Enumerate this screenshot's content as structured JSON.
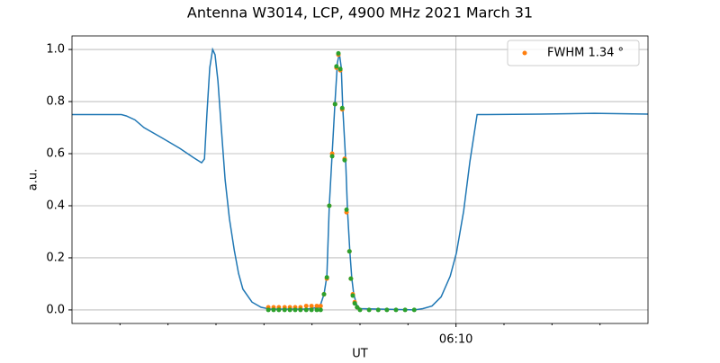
{
  "chart_data": {
    "type": "line",
    "title": "Antenna W3014, LCP, 4900 MHz 2021 March 31",
    "x_label": "UT",
    "y_label": "a.u.",
    "xlim": [
      2,
      14
    ],
    "xticks": [
      {
        "value": 10,
        "label": "06:10"
      }
    ],
    "xminorticks": [
      3,
      4,
      5,
      6,
      7,
      8,
      9,
      11,
      12,
      13
    ],
    "ylim": [
      -0.052,
      1.052
    ],
    "yticks": [
      {
        "value": 0,
        "label": "0.0"
      },
      0.2,
      0.4,
      0.6,
      0.8,
      {
        "value": 1,
        "label": "1.0"
      }
    ],
    "grid": true,
    "legend": "upper right",
    "series": [
      {
        "style": "line",
        "color": "#1f77b4",
        "x": [
          2.0,
          3.03,
          3.13,
          3.31,
          3.5,
          3.88,
          4.25,
          4.53,
          4.7,
          4.76,
          4.81,
          4.87,
          4.93,
          4.98,
          5.04,
          5.11,
          5.19,
          5.28,
          5.38,
          5.47,
          5.56,
          5.75,
          5.94,
          6.13,
          6.88,
          7.16,
          7.25,
          7.31,
          7.36,
          7.42,
          7.48,
          7.53,
          7.57,
          7.61,
          7.64,
          7.7,
          7.74,
          7.79,
          7.83,
          7.87,
          7.93,
          8.0,
          9.13,
          9.31,
          9.5,
          9.69,
          9.88,
          10.01,
          10.16,
          10.29,
          10.44,
          10.63,
          11.75,
          12.88,
          14.0
        ],
        "values": [
          0.75,
          0.75,
          0.745,
          0.73,
          0.7,
          0.66,
          0.62,
          0.585,
          0.565,
          0.58,
          0.75,
          0.93,
          1.0,
          0.98,
          0.88,
          0.7,
          0.5,
          0.35,
          0.23,
          0.14,
          0.08,
          0.03,
          0.01,
          0.003,
          0.003,
          0.01,
          0.06,
          0.13,
          0.4,
          0.6,
          0.8,
          0.95,
          0.985,
          0.93,
          0.78,
          0.58,
          0.38,
          0.22,
          0.12,
          0.06,
          0.02,
          0.005,
          0.0,
          0.005,
          0.015,
          0.05,
          0.13,
          0.22,
          0.38,
          0.57,
          0.75,
          0.75,
          0.752,
          0.755,
          0.752
        ]
      },
      {
        "style": "points",
        "name": "FWHM 1.34 °",
        "color": "#ff7f0e",
        "x": [
          6.09,
          6.2,
          6.31,
          6.43,
          6.54,
          6.65,
          6.76,
          6.88,
          6.99,
          7.1,
          7.18,
          7.25,
          7.31,
          7.36,
          7.42,
          7.48,
          7.51,
          7.55,
          7.59,
          7.63,
          7.68,
          7.72,
          7.78,
          7.81,
          7.85,
          7.89,
          7.94
        ],
        "values": [
          0.01,
          0.01,
          0.01,
          0.01,
          0.01,
          0.01,
          0.01,
          0.015,
          0.015,
          0.015,
          0.015,
          0.06,
          0.12,
          0.4,
          0.6,
          0.79,
          0.93,
          0.98,
          0.92,
          0.77,
          0.58,
          0.375,
          0.225,
          0.12,
          0.06,
          0.03,
          0.01
        ]
      },
      {
        "style": "points",
        "color": "#2ca02c",
        "x": [
          6.09,
          6.2,
          6.31,
          6.43,
          6.54,
          6.65,
          6.76,
          6.88,
          6.99,
          7.1,
          7.18,
          7.25,
          7.31,
          7.36,
          7.42,
          7.48,
          7.51,
          7.55,
          7.59,
          7.63,
          7.68,
          7.72,
          7.78,
          7.81,
          7.85,
          7.89,
          7.94,
          8.0,
          8.19,
          8.38,
          8.56,
          8.75,
          8.94,
          9.13
        ],
        "values": [
          0,
          0,
          0,
          0,
          0,
          0,
          0,
          0,
          0,
          0,
          0,
          0.06,
          0.125,
          0.4,
          0.59,
          0.79,
          0.935,
          0.985,
          0.925,
          0.775,
          0.575,
          0.385,
          0.225,
          0.12,
          0.055,
          0.025,
          0.01,
          0,
          0,
          0,
          0,
          0,
          0,
          0
        ]
      }
    ]
  }
}
